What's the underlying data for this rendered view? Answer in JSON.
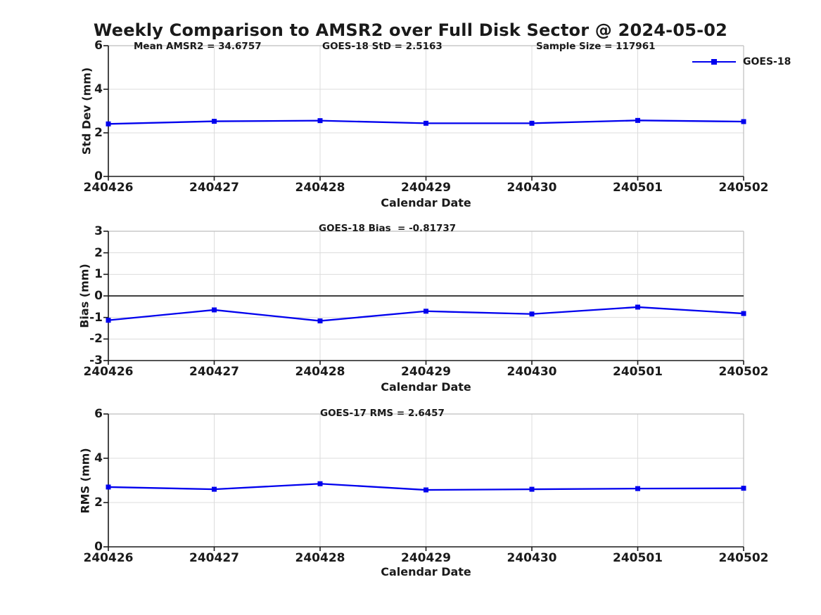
{
  "figure": {
    "title": "Weekly Comparison to AMSR2 over Full Disk Sector @ 2024-05-02",
    "x_axis_label": "Calendar Date",
    "legend": {
      "label": "GOES-18"
    }
  },
  "colors": {
    "line": "#0000EE",
    "grid": "#DCDCDC",
    "box": "#BDBDBD",
    "axis": "#1A1A1A",
    "zero_line": "#404040",
    "text": "#1A1A1A"
  },
  "chart_data": [
    {
      "type": "line",
      "ylabel": "Std Dev (mm)",
      "xlabel": "Calendar Date",
      "categories": [
        "240426",
        "240427",
        "240428",
        "240429",
        "240430",
        "240501",
        "240502"
      ],
      "series": [
        {
          "name": "GOES-18",
          "values": [
            2.41,
            2.53,
            2.56,
            2.44,
            2.44,
            2.57,
            2.5163
          ]
        }
      ],
      "ylim": [
        0,
        6
      ],
      "yticks": [
        0,
        2,
        4,
        6
      ],
      "grid": true,
      "marker": "square",
      "legend_position": "northeast-outside",
      "annotations": [
        "Mean AMSR2 = 34.6757",
        "GOES-18 StD = 2.5163",
        "Sample Size = 117961"
      ]
    },
    {
      "type": "line",
      "ylabel": "Bias (mm)",
      "xlabel": "Calendar Date",
      "categories": [
        "240426",
        "240427",
        "240428",
        "240429",
        "240430",
        "240501",
        "240502"
      ],
      "series": [
        {
          "name": "GOES-18",
          "values": [
            -1.13,
            -0.65,
            -1.16,
            -0.71,
            -0.84,
            -0.52,
            -0.81737
          ]
        }
      ],
      "ylim": [
        -3,
        3
      ],
      "yticks": [
        -3,
        -2,
        -1,
        0,
        1,
        2,
        3
      ],
      "zero_line": true,
      "grid": true,
      "marker": "square",
      "annotations": [
        "GOES-18 Bias  = -0.81737"
      ]
    },
    {
      "type": "line",
      "ylabel": "RMS (mm)",
      "xlabel": "Calendar Date",
      "categories": [
        "240426",
        "240427",
        "240428",
        "240429",
        "240430",
        "240501",
        "240502"
      ],
      "series": [
        {
          "name": "GOES-17",
          "values": [
            2.7,
            2.6,
            2.85,
            2.57,
            2.6,
            2.63,
            2.6457
          ]
        }
      ],
      "ylim": [
        0,
        6
      ],
      "yticks": [
        0,
        2,
        4,
        6
      ],
      "grid": true,
      "marker": "square",
      "annotations": [
        "GOES-17 RMS = 2.6457"
      ]
    }
  ]
}
